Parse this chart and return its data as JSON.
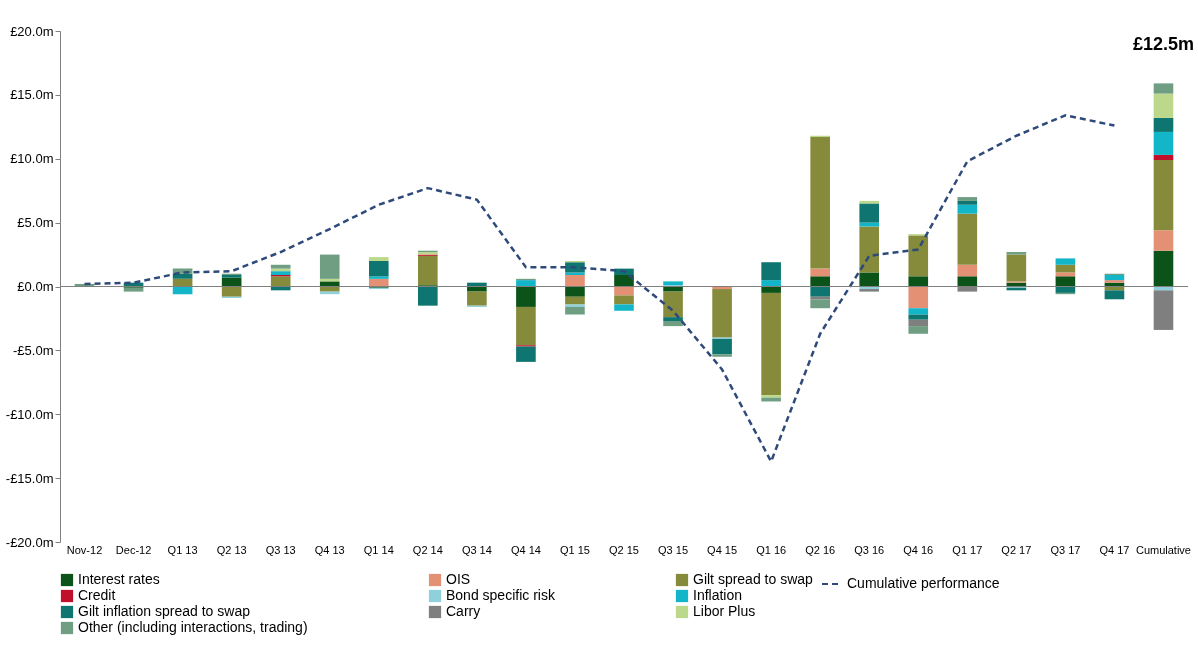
{
  "chart_data": {
    "type": "bar",
    "stacked": true,
    "categories": [
      "Nov-12",
      "Dec-12",
      "Q1 13",
      "Q2 13",
      "Q3 13",
      "Q4 13",
      "Q1 14",
      "Q2 14",
      "Q3 14",
      "Q4 14",
      "Q1 15",
      "Q2 15",
      "Q3 15",
      "Q4 15",
      "Q1 16",
      "Q2 16",
      "Q3 16",
      "Q4 16",
      "Q1 17",
      "Q2 17",
      "Q3 17",
      "Q4 17",
      "Cumulative"
    ],
    "ylim": [
      -20,
      20
    ],
    "yticks": [
      {
        "value": -20,
        "label": "-£20.0m"
      },
      {
        "value": -15,
        "label": "-£15.0m"
      },
      {
        "value": -10,
        "label": "-£10.0m"
      },
      {
        "value": -5,
        "label": "-£5.0m"
      },
      {
        "value": 0,
        "label": "£0.0m"
      },
      {
        "value": 5,
        "label": "£5.0m"
      },
      {
        "value": 10,
        "label": "£10.0m"
      },
      {
        "value": 15,
        "label": "£15.0m"
      },
      {
        "value": 20,
        "label": "£20.0m"
      }
    ],
    "grid": false,
    "legend": "bottom",
    "annotations": [
      "£12.5m"
    ],
    "ref_lines": [
      {
        "axis": "y",
        "value": 0,
        "color": "#808080"
      }
    ],
    "series": [
      {
        "name": "Interest rates",
        "color": "#0b5318",
        "values": [
          null,
          -0.1,
          null,
          0.7,
          null,
          0.4,
          -0.1,
          0.1,
          -0.4,
          -1.6,
          -0.8,
          0.9,
          -0.4,
          null,
          -0.5,
          0.8,
          1.1,
          0.8,
          0.8,
          0.3,
          0.8,
          0.3,
          2.8
        ]
      },
      {
        "name": "OIS",
        "color": "#e39074",
        "values": [
          null,
          null,
          null,
          null,
          null,
          null,
          0.6,
          null,
          null,
          null,
          0.9,
          -0.7,
          null,
          -0.2,
          null,
          0.6,
          null,
          -1.7,
          0.9,
          0.1,
          0.3,
          0.2,
          1.6
        ]
      },
      {
        "name": "Gilt spread to swap",
        "color": "#868b3b",
        "values": [
          null,
          null,
          0.6,
          -0.8,
          0.8,
          -0.4,
          null,
          2.3,
          -1.1,
          -3.0,
          -0.6,
          -0.7,
          -2.0,
          -3.8,
          -8.0,
          10.3,
          3.6,
          3.2,
          4.0,
          2.1,
          0.6,
          -0.3,
          5.5
        ]
      },
      {
        "name": "Credit",
        "color": "#c0102a",
        "values": [
          null,
          null,
          null,
          null,
          0.1,
          null,
          null,
          0.1,
          null,
          -0.1,
          null,
          null,
          null,
          null,
          null,
          null,
          null,
          null,
          null,
          null,
          null,
          null,
          0.4
        ]
      },
      {
        "name": "Bond specific risk",
        "color": "#8fd0dc",
        "values": [
          null,
          null,
          null,
          -0.1,
          null,
          -0.2,
          -0.1,
          null,
          -0.1,
          null,
          -0.2,
          null,
          0.1,
          -0.1,
          null,
          null,
          -0.2,
          null,
          null,
          -0.1,
          null,
          null,
          -0.3
        ]
      },
      {
        "name": "Inflation",
        "color": "#13b5c8",
        "values": [
          null,
          null,
          -0.6,
          null,
          0.3,
          null,
          0.2,
          null,
          null,
          0.5,
          0.2,
          -0.5,
          0.3,
          null,
          0.5,
          null,
          0.3,
          -0.5,
          0.7,
          null,
          0.5,
          0.4,
          1.8
        ]
      },
      {
        "name": "Gilt inflation spread to swap",
        "color": "#0e7570",
        "values": [
          null,
          0.3,
          0.4,
          0.2,
          -0.3,
          null,
          1.2,
          -1.5,
          0.3,
          -1.2,
          0.8,
          0.5,
          -0.3,
          -1.2,
          1.4,
          -0.8,
          1.5,
          -0.4,
          0.3,
          -0.2,
          -0.5,
          -0.7,
          1.1
        ]
      },
      {
        "name": "Carry",
        "color": "#7f7f7f",
        "values": [
          null,
          null,
          null,
          null,
          null,
          null,
          null,
          null,
          null,
          null,
          null,
          null,
          null,
          null,
          null,
          -0.2,
          -0.2,
          -0.5,
          -0.4,
          null,
          null,
          null,
          -3.1
        ]
      },
      {
        "name": "Libor Plus",
        "color": "#bcd88a",
        "values": [
          null,
          null,
          null,
          null,
          0.2,
          0.2,
          0.3,
          0.2,
          null,
          null,
          0.1,
          null,
          null,
          null,
          -0.2,
          0.1,
          0.2,
          0.1,
          null,
          null,
          null,
          null,
          1.9
        ]
      },
      {
        "name": "Other (including interactions, trading)",
        "color": "#6f9e83",
        "values": [
          0.2,
          -0.3,
          0.4,
          0.1,
          0.3,
          1.9,
          null,
          0.1,
          null,
          0.1,
          -0.6,
          null,
          -0.4,
          -0.2,
          -0.3,
          -0.7,
          null,
          -0.6,
          0.3,
          0.2,
          -0.1,
          0.1,
          0.8
        ]
      },
      {
        "name": "Cumulative performance",
        "type": "line",
        "line_style": "dashed",
        "color": "#2e4a7a",
        "values": [
          0.2,
          0.3,
          1.1,
          1.2,
          2.7,
          4.5,
          6.4,
          7.7,
          6.8,
          1.5,
          1.5,
          1.2,
          -1.9,
          -6.5,
          -13.7,
          -3.7,
          2.4,
          2.9,
          9.8,
          11.8,
          13.4,
          12.6,
          null
        ]
      }
    ]
  }
}
